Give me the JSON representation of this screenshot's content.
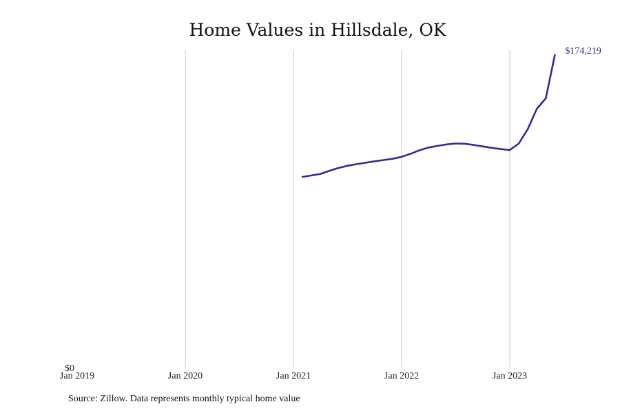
{
  "chart_data": {
    "type": "line",
    "title": "Home Values in Hillsdale, OK",
    "x_ticks": [
      "Jan 2019",
      "Jan 2020",
      "Jan 2021",
      "Jan 2022",
      "Jan 2023"
    ],
    "y_ticks": [
      "$0"
    ],
    "ylim": [
      0,
      174219
    ],
    "grid": "vertical",
    "series": [
      {
        "color": "#2e2d8e",
        "points": [
          {
            "x": "2021-02",
            "y": 106300
          },
          {
            "x": "2021-03",
            "y": 107100
          },
          {
            "x": "2021-04",
            "y": 108000
          },
          {
            "x": "2021-05",
            "y": 109700
          },
          {
            "x": "2021-06",
            "y": 111300
          },
          {
            "x": "2021-07",
            "y": 112500
          },
          {
            "x": "2021-08",
            "y": 113400
          },
          {
            "x": "2021-09",
            "y": 114200
          },
          {
            "x": "2021-10",
            "y": 115000
          },
          {
            "x": "2021-11",
            "y": 115700
          },
          {
            "x": "2021-12",
            "y": 116400
          },
          {
            "x": "2022-01",
            "y": 117500
          },
          {
            "x": "2022-02",
            "y": 119200
          },
          {
            "x": "2022-03",
            "y": 121200
          },
          {
            "x": "2022-04",
            "y": 122700
          },
          {
            "x": "2022-05",
            "y": 123600
          },
          {
            "x": "2022-06",
            "y": 124400
          },
          {
            "x": "2022-07",
            "y": 124900
          },
          {
            "x": "2022-08",
            "y": 124800
          },
          {
            "x": "2022-09",
            "y": 124100
          },
          {
            "x": "2022-10",
            "y": 123300
          },
          {
            "x": "2022-11",
            "y": 122500
          },
          {
            "x": "2022-12",
            "y": 121800
          },
          {
            "x": "2023-01",
            "y": 121300
          },
          {
            "x": "2023-02",
            "y": 124900
          },
          {
            "x": "2023-03",
            "y": 133000
          },
          {
            "x": "2023-04",
            "y": 144300
          },
          {
            "x": "2023-05",
            "y": 150100
          },
          {
            "x": "2023-06",
            "y": 174219
          }
        ],
        "end_label": "$174,219"
      }
    ]
  },
  "source_note": "Source: Zillow. Data represents monthly typical home value"
}
